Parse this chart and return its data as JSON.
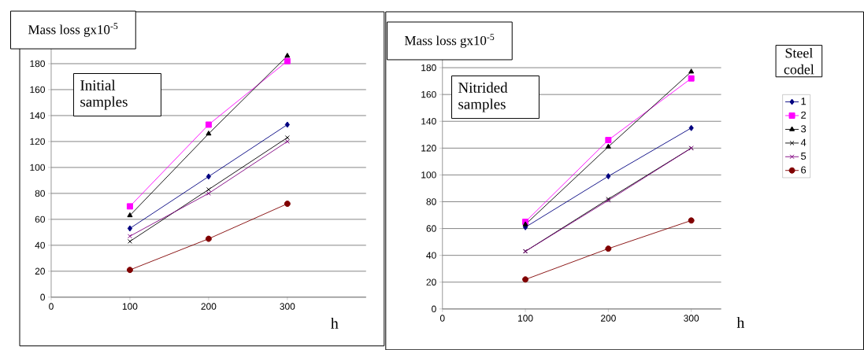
{
  "chart_data": [
    {
      "type": "line",
      "ylabel": "Mass loss  gx10$^{-5}$",
      "xlabel": "h",
      "annotations": [
        "Initial samples"
      ],
      "x": [
        100,
        200,
        300
      ],
      "xlim": [
        0,
        400
      ],
      "xticks": [
        0,
        100,
        200,
        300
      ],
      "ylim": [
        0,
        200
      ],
      "yticks": [
        0,
        20,
        40,
        60,
        80,
        100,
        120,
        140,
        160,
        180
      ],
      "grid": "y",
      "legend": false,
      "series": [
        {
          "color": "#000080",
          "marker": "diamond",
          "values": [
            53,
            93,
            133
          ]
        },
        {
          "color": "#ff00ff",
          "marker": "square",
          "values": [
            70,
            133,
            182
          ]
        },
        {
          "color": "#000000",
          "marker": "triangle",
          "values": [
            63,
            126,
            186
          ]
        },
        {
          "color": "#000000",
          "marker": "cross",
          "values": [
            43,
            83,
            123
          ]
        },
        {
          "color": "#800080",
          "marker": "cross",
          "values": [
            47,
            80,
            120
          ]
        },
        {
          "color": "#800000",
          "marker": "circle",
          "values": [
            21,
            45,
            72
          ]
        }
      ]
    },
    {
      "type": "line",
      "ylabel": "Mass loss  gx10$^{-5}$",
      "xlabel": "h",
      "annotations": [
        "Nitrided samples"
      ],
      "legend_title": "Steel codel",
      "x": [
        100,
        200,
        300
      ],
      "xlim": [
        0,
        336
      ],
      "xticks": [
        0,
        100,
        200,
        300
      ],
      "ylim": [
        0,
        200
      ],
      "yticks": [
        0,
        20,
        40,
        60,
        80,
        100,
        120,
        140,
        160,
        180
      ],
      "grid": "y",
      "legend": "right",
      "series": [
        {
          "name": "1",
          "color": "#000080",
          "marker": "diamond",
          "values": [
            61,
            99,
            135
          ]
        },
        {
          "name": "2",
          "color": "#ff00ff",
          "marker": "square",
          "values": [
            65,
            126,
            172
          ]
        },
        {
          "name": "3",
          "color": "#000000",
          "marker": "triangle",
          "values": [
            63,
            121,
            177
          ]
        },
        {
          "name": "4",
          "color": "#000000",
          "marker": "cross",
          "values": [
            43,
            82,
            120
          ]
        },
        {
          "name": "5",
          "color": "#800080",
          "marker": "cross",
          "values": [
            43,
            81,
            120
          ]
        },
        {
          "name": "6",
          "color": "#800000",
          "marker": "circle",
          "values": [
            22,
            45,
            66
          ]
        }
      ]
    }
  ]
}
